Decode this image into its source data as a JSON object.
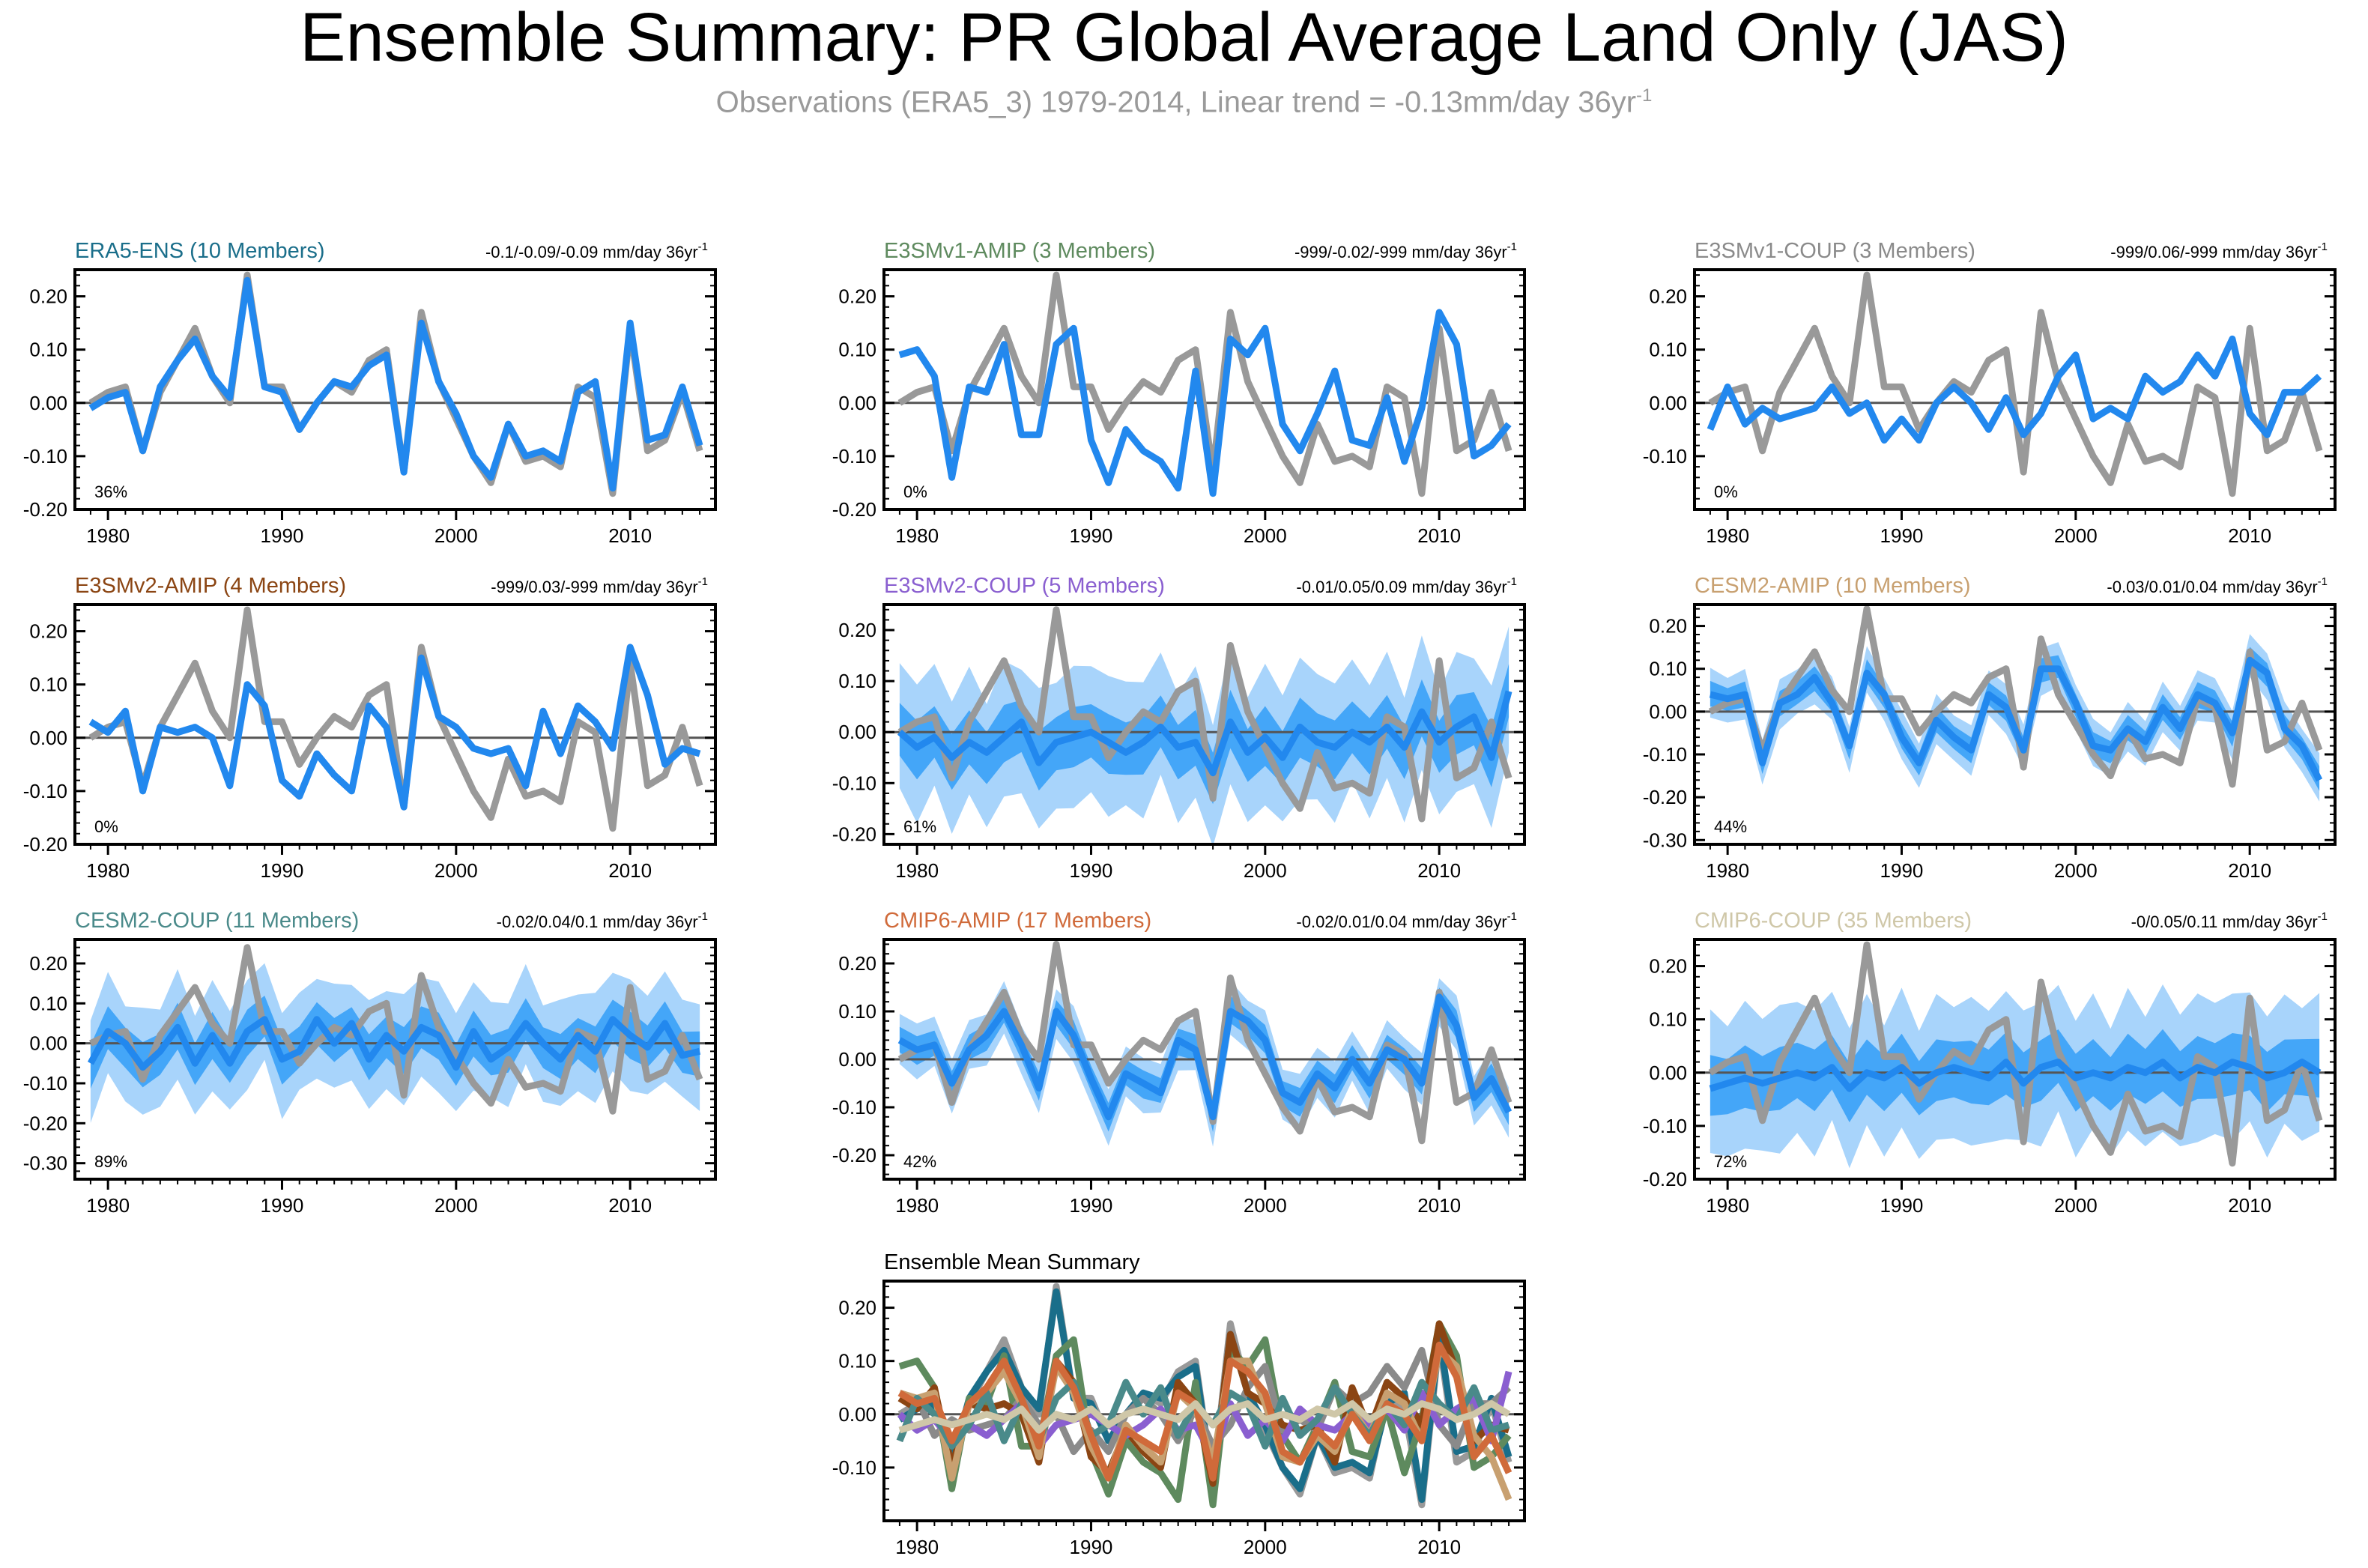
{
  "title": "Ensemble Summary: PR Global Average Land Only (JAS)",
  "subtitle": "Observations (ERA5_3) 1979-2014, Linear trend = -0.13mm/day 36yr",
  "subtitle_sup": "-1",
  "colors": {
    "obs": "#999999",
    "mean": "#2288ee",
    "inner": "#44a6f8",
    "outer": "#a8d4fb",
    "zero": "#555555",
    "frame": "#000000"
  },
  "chart_data": [
    {
      "id": "era5-ens",
      "type": "line",
      "title": "ERA5-ENS (10 Members)",
      "title_color": "#1a6e8a",
      "trend": "-0.1/-0.09/-0.09 mm/day 36yr",
      "trend_sup": "-1",
      "pct": "36%",
      "ylim": [
        -0.2,
        0.25
      ],
      "yticks": [
        -0.2,
        -0.1,
        0.0,
        0.1,
        0.2
      ],
      "ytick_labels": [
        "-0.20",
        "-0.10",
        "0.00",
        "0.10",
        "0.20"
      ],
      "xlim": [
        1979,
        2014
      ],
      "xticks": [
        1980,
        1990,
        2000,
        2010
      ],
      "xtick_labels": [
        "1980",
        "1990",
        "2000",
        "2010"
      ],
      "band": "none"
    },
    {
      "id": "e3smv1-amip",
      "type": "line",
      "title": "E3SMv1-AMIP (3 Members)",
      "title_color": "#5e8a5e",
      "trend": "-999/-0.02/-999 mm/day 36yr",
      "trend_sup": "-1",
      "pct": "0%",
      "ylim": [
        -0.2,
        0.25
      ],
      "yticks": [
        -0.2,
        -0.1,
        0.0,
        0.1,
        0.2
      ],
      "ytick_labels": [
        "-0.20",
        "-0.10",
        "0.00",
        "0.10",
        "0.20"
      ],
      "xlim": [
        1979,
        2014
      ],
      "xticks": [
        1980,
        1990,
        2000,
        2010
      ],
      "xtick_labels": [
        "1980",
        "1990",
        "2000",
        "2010"
      ],
      "band": "none"
    },
    {
      "id": "e3smv1-coup",
      "type": "line",
      "title": "E3SMv1-COUP (3 Members)",
      "title_color": "#8a8a8a",
      "trend": "-999/0.06/-999 mm/day 36yr",
      "trend_sup": "-1",
      "pct": "0%",
      "ylim": [
        -0.2,
        0.25
      ],
      "yticks": [
        -0.1,
        0.0,
        0.1,
        0.2
      ],
      "ytick_labels": [
        "-0.10",
        "0.00",
        "0.10",
        "0.20"
      ],
      "xlim": [
        1979,
        2014
      ],
      "xticks": [
        1980,
        1990,
        2000,
        2010
      ],
      "xtick_labels": [
        "1980",
        "1990",
        "2000",
        "2010"
      ],
      "band": "none"
    },
    {
      "id": "e3smv2-amip",
      "type": "line",
      "title": "E3SMv2-AMIP (4 Members)",
      "title_color": "#8b4513",
      "trend": "-999/0.03/-999 mm/day 36yr",
      "trend_sup": "-1",
      "pct": "0%",
      "ylim": [
        -0.2,
        0.25
      ],
      "yticks": [
        -0.2,
        -0.1,
        0.0,
        0.1,
        0.2
      ],
      "ytick_labels": [
        "-0.20",
        "-0.10",
        "0.00",
        "0.10",
        "0.20"
      ],
      "xlim": [
        1979,
        2014
      ],
      "xticks": [
        1980,
        1990,
        2000,
        2010
      ],
      "xtick_labels": [
        "1980",
        "1990",
        "2000",
        "2010"
      ],
      "band": "none"
    },
    {
      "id": "e3smv2-coup",
      "type": "line",
      "title": "E3SMv2-COUP (5 Members)",
      "title_color": "#8a5fd0",
      "trend": "-0.01/0.05/0.09 mm/day 36yr",
      "trend_sup": "-1",
      "pct": "61%",
      "ylim": [
        -0.22,
        0.25
      ],
      "yticks": [
        -0.2,
        -0.1,
        0.0,
        0.1,
        0.2
      ],
      "ytick_labels": [
        "-0.20",
        "-0.10",
        "0.00",
        "0.10",
        "0.20"
      ],
      "xlim": [
        1979,
        2014
      ],
      "xticks": [
        1980,
        1990,
        2000,
        2010
      ],
      "xtick_labels": [
        "1980",
        "1990",
        "2000",
        "2010"
      ],
      "band": "wide"
    },
    {
      "id": "cesm2-amip",
      "type": "line",
      "title": "CESM2-AMIP (10 Members)",
      "title_color": "#c8a070",
      "trend": "-0.03/0.01/0.04 mm/day 36yr",
      "trend_sup": "-1",
      "pct": "44%",
      "ylim": [
        -0.31,
        0.25
      ],
      "yticks": [
        -0.3,
        -0.2,
        -0.1,
        0.0,
        0.1,
        0.2
      ],
      "ytick_labels": [
        "-0.30",
        "-0.20",
        "-0.10",
        "0.00",
        "0.10",
        "0.20"
      ],
      "xlim": [
        1979,
        2014
      ],
      "xticks": [
        1980,
        1990,
        2000,
        2010
      ],
      "xtick_labels": [
        "1980",
        "1990",
        "2000",
        "2010"
      ],
      "band": "narrow"
    },
    {
      "id": "cesm2-coup",
      "type": "line",
      "title": "CESM2-COUP (11 Members)",
      "title_color": "#4a8a8a",
      "trend": "-0.02/0.04/0.1 mm/day 36yr",
      "trend_sup": "-1",
      "pct": "89%",
      "ylim": [
        -0.34,
        0.26
      ],
      "yticks": [
        -0.3,
        -0.2,
        -0.1,
        0.0,
        0.1,
        0.2
      ],
      "ytick_labels": [
        "-0.30",
        "-0.20",
        "-0.10",
        "0.00",
        "0.10",
        "0.20"
      ],
      "xlim": [
        1979,
        2014
      ],
      "xticks": [
        1980,
        1990,
        2000,
        2010
      ],
      "xtick_labels": [
        "1980",
        "1990",
        "2000",
        "2010"
      ],
      "band": "wide"
    },
    {
      "id": "cmip6-amip",
      "type": "line",
      "title": "CMIP6-AMIP (17 Members)",
      "title_color": "#d06a3a",
      "trend": "-0.02/0.01/0.04 mm/day 36yr",
      "trend_sup": "-1",
      "pct": "42%",
      "ylim": [
        -0.25,
        0.25
      ],
      "yticks": [
        -0.2,
        -0.1,
        0.0,
        0.1,
        0.2
      ],
      "ytick_labels": [
        "-0.20",
        "-0.10",
        "0.00",
        "0.10",
        "0.20"
      ],
      "xlim": [
        1979,
        2014
      ],
      "xticks": [
        1980,
        1990,
        2000,
        2010
      ],
      "xtick_labels": [
        "1980",
        "1990",
        "2000",
        "2010"
      ],
      "band": "narrow"
    },
    {
      "id": "cmip6-coup",
      "type": "line",
      "title": "CMIP6-COUP (35 Members)",
      "title_color": "#cfc7a8",
      "trend": "-0/0.05/0.11 mm/day 36yr",
      "trend_sup": "-1",
      "pct": "72%",
      "ylim": [
        -0.2,
        0.25
      ],
      "yticks": [
        -0.2,
        -0.1,
        0.0,
        0.1,
        0.2
      ],
      "ytick_labels": [
        "-0.20",
        "-0.10",
        "0.00",
        "0.10",
        "0.20"
      ],
      "xlim": [
        1979,
        2014
      ],
      "xticks": [
        1980,
        1990,
        2000,
        2010
      ],
      "xtick_labels": [
        "1980",
        "1990",
        "2000",
        "2010"
      ],
      "band": "wide"
    },
    {
      "id": "ensemble-mean-summary",
      "type": "line",
      "title": "Ensemble Mean Summary",
      "title_color": "#000000",
      "trend": "",
      "trend_sup": "",
      "pct": "",
      "ylim": [
        -0.2,
        0.25
      ],
      "yticks": [
        -0.1,
        0.0,
        0.1,
        0.2
      ],
      "ytick_labels": [
        "-0.10",
        "0.00",
        "0.10",
        "0.20"
      ],
      "xlim": [
        1979,
        2014
      ],
      "xticks": [
        1980,
        1990,
        2000,
        2010
      ],
      "xtick_labels": [
        "1980",
        "1990",
        "2000",
        "2010"
      ],
      "band": "none",
      "summary": true
    }
  ],
  "series_data": {
    "years_start": 1979,
    "obs": [
      0.0,
      0.02,
      0.03,
      -0.09,
      0.02,
      0.08,
      0.14,
      0.05,
      0.0,
      0.24,
      0.03,
      0.03,
      -0.05,
      0.0,
      0.04,
      0.02,
      0.08,
      0.1,
      -0.13,
      0.17,
      0.04,
      -0.03,
      -0.1,
      -0.15,
      -0.04,
      -0.11,
      -0.1,
      -0.12,
      0.03,
      0.01,
      -0.17,
      0.14,
      -0.09,
      -0.07,
      0.02,
      -0.09
    ],
    "era5-ens": [
      -0.01,
      0.01,
      0.02,
      -0.09,
      0.03,
      0.08,
      0.12,
      0.05,
      0.01,
      0.23,
      0.03,
      0.02,
      -0.05,
      0.0,
      0.04,
      0.03,
      0.07,
      0.09,
      -0.13,
      0.15,
      0.04,
      -0.02,
      -0.1,
      -0.14,
      -0.04,
      -0.1,
      -0.09,
      -0.11,
      0.02,
      0.04,
      -0.16,
      0.15,
      -0.07,
      -0.06,
      0.03,
      -0.08
    ],
    "e3smv1-amip": [
      0.09,
      0.1,
      0.05,
      -0.14,
      0.03,
      0.02,
      0.11,
      -0.06,
      -0.06,
      0.11,
      0.14,
      -0.07,
      -0.15,
      -0.05,
      -0.09,
      -0.11,
      -0.16,
      0.06,
      -0.17,
      0.12,
      0.09,
      0.14,
      -0.04,
      -0.09,
      -0.02,
      0.06,
      -0.07,
      -0.08,
      0.01,
      -0.11,
      -0.01,
      0.17,
      0.11,
      -0.1,
      -0.08,
      -0.04
    ],
    "e3smv1-coup": [
      -0.05,
      0.03,
      -0.04,
      -0.01,
      -0.03,
      -0.02,
      -0.01,
      0.03,
      -0.02,
      0.0,
      -0.07,
      -0.03,
      -0.07,
      0.0,
      0.03,
      0.0,
      -0.05,
      0.01,
      -0.06,
      -0.02,
      0.05,
      0.09,
      -0.03,
      -0.01,
      -0.03,
      0.05,
      0.02,
      0.04,
      0.09,
      0.05,
      0.12,
      -0.02,
      -0.06,
      0.02,
      0.02,
      0.05
    ],
    "e3smv2-amip": [
      0.03,
      0.01,
      0.05,
      -0.1,
      0.02,
      0.01,
      0.02,
      0.0,
      -0.09,
      0.1,
      0.06,
      -0.08,
      -0.11,
      -0.03,
      -0.07,
      -0.1,
      0.06,
      0.02,
      -0.13,
      0.15,
      0.04,
      0.02,
      -0.02,
      -0.03,
      -0.02,
      -0.09,
      0.05,
      -0.03,
      0.06,
      0.03,
      -0.02,
      0.17,
      0.08,
      -0.05,
      -0.02,
      -0.03
    ],
    "e3smv2-coup": [
      0.0,
      -0.03,
      -0.01,
      -0.05,
      -0.02,
      -0.04,
      -0.01,
      0.02,
      -0.06,
      -0.02,
      -0.01,
      0.0,
      -0.02,
      -0.04,
      -0.02,
      0.01,
      -0.03,
      -0.02,
      -0.08,
      0.02,
      -0.04,
      -0.01,
      -0.05,
      0.01,
      -0.02,
      -0.03,
      0.0,
      -0.02,
      0.01,
      -0.03,
      0.04,
      -0.02,
      0.01,
      0.03,
      -0.05,
      0.08
    ],
    "cesm2-amip": [
      0.04,
      0.03,
      0.04,
      -0.12,
      0.02,
      0.04,
      0.08,
      0.02,
      -0.08,
      0.09,
      0.04,
      -0.06,
      -0.12,
      -0.02,
      -0.06,
      -0.09,
      0.04,
      0.01,
      -0.09,
      0.1,
      0.1,
      0.02,
      -0.08,
      -0.09,
      -0.04,
      -0.07,
      0.01,
      -0.04,
      0.04,
      0.02,
      -0.05,
      0.12,
      0.09,
      -0.04,
      -0.08,
      -0.16
    ],
    "cesm2-coup": [
      -0.05,
      0.03,
      0.0,
      -0.06,
      -0.02,
      0.04,
      -0.05,
      0.02,
      -0.05,
      0.03,
      0.06,
      -0.04,
      -0.02,
      0.06,
      0.0,
      0.05,
      -0.04,
      0.02,
      -0.02,
      0.04,
      0.02,
      -0.06,
      0.03,
      -0.04,
      -0.01,
      0.05,
      0.0,
      -0.04,
      0.02,
      -0.02,
      0.06,
      0.02,
      -0.01,
      0.05,
      -0.03,
      -0.02
    ],
    "cmip6-amip": [
      0.04,
      0.02,
      0.03,
      -0.05,
      0.02,
      0.05,
      0.1,
      0.03,
      -0.06,
      0.1,
      0.05,
      -0.04,
      -0.12,
      -0.03,
      -0.05,
      -0.07,
      0.04,
      0.02,
      -0.12,
      0.1,
      0.08,
      0.04,
      -0.07,
      -0.09,
      -0.03,
      -0.06,
      0.0,
      -0.05,
      0.02,
      0.0,
      -0.05,
      0.13,
      0.07,
      -0.08,
      -0.04,
      -0.11
    ],
    "cmip6-coup": [
      -0.03,
      -0.02,
      -0.01,
      -0.02,
      -0.01,
      0.0,
      -0.01,
      0.01,
      -0.03,
      0.0,
      -0.01,
      0.01,
      -0.02,
      0.0,
      0.01,
      0.0,
      -0.01,
      0.02,
      -0.02,
      0.01,
      0.02,
      -0.01,
      0.0,
      -0.01,
      0.01,
      0.0,
      0.02,
      -0.01,
      0.01,
      0.0,
      0.02,
      0.01,
      -0.01,
      0.0,
      0.02,
      0.0
    ]
  },
  "summary_series_colors": {
    "era5-ens": "#1a6e8a",
    "e3smv1-amip": "#5e8a5e",
    "e3smv1-coup": "#8a8a8a",
    "e3smv2-amip": "#8b4513",
    "e3smv2-coup": "#8a5fd0",
    "cesm2-amip": "#c8a070",
    "cesm2-coup": "#4a8a8a",
    "cmip6-amip": "#d06a3a",
    "cmip6-coup": "#cfc7a8"
  }
}
